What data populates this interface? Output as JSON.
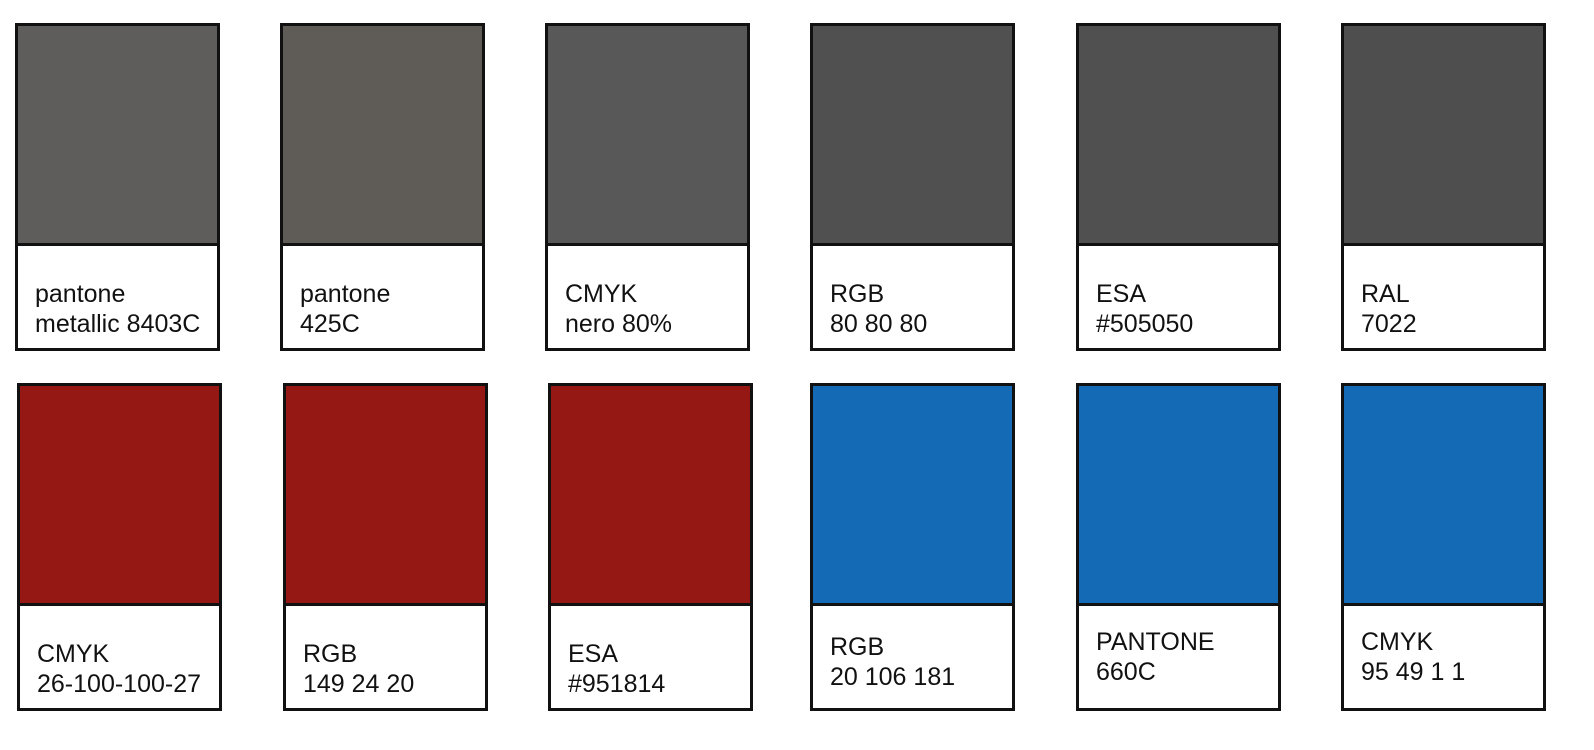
{
  "swatches": [
    {
      "color": "#5f5d5b",
      "line1": "pantone",
      "line2": "metallic 8403C"
    },
    {
      "color": "#5f5c58",
      "line1": "pantone",
      "line2": "425C"
    },
    {
      "color": "#585858",
      "line1": "CMYK",
      "line2": "nero 80%"
    },
    {
      "color": "#505050",
      "line1": "RGB",
      "line2": "80 80 80"
    },
    {
      "color": "#505050",
      "line1": "ESA",
      "line2": "#505050"
    },
    {
      "color": "#4e4e4e",
      "line1": "RAL",
      "line2": "7022"
    },
    {
      "color": "#951814",
      "line1": "CMYK",
      "line2": "26-100-100-27"
    },
    {
      "color": "#951814",
      "line1": "RGB",
      "line2": "149 24 20"
    },
    {
      "color": "#951814",
      "line1": "ESA",
      "line2": "#951814"
    },
    {
      "color": "#146ab5",
      "line1": "RGB",
      "line2": "20 106 181"
    },
    {
      "color": "#146ab5",
      "line1": "PANTONE",
      "line2": "660C"
    },
    {
      "color": "#146ab5",
      "line1": "CMYK",
      "line2": "95 49 1 1"
    }
  ]
}
